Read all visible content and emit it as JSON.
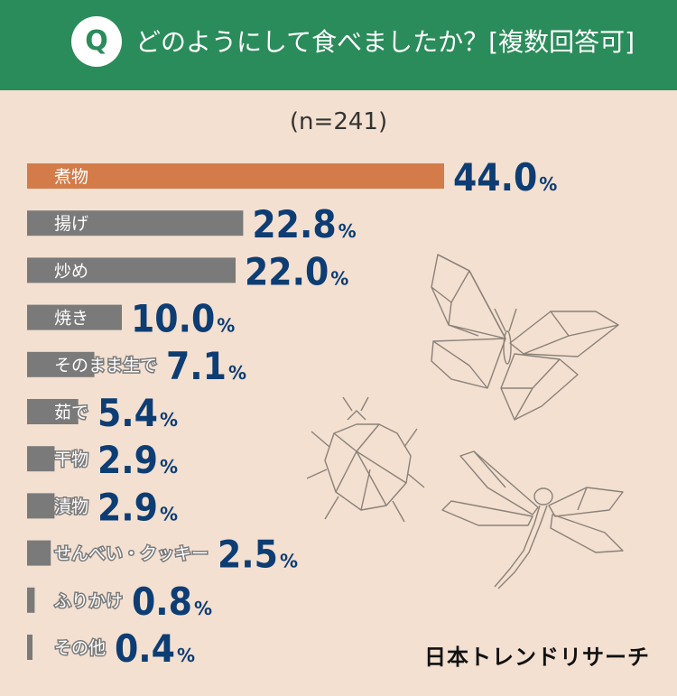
{
  "header": {
    "q_mark": "Q",
    "question": "どのようにして食べましたか？[複数回答可]"
  },
  "sample_size": "(n=241)",
  "brand": "日本トレンドリサーチ",
  "colors": {
    "header_bg": "#2a8c5a",
    "background": "#f3e0d1",
    "highlight_bar": "#d47c49",
    "bar": "#7a7a7a",
    "value_text": "#0d3d73"
  },
  "chart_data": {
    "type": "bar",
    "orientation": "horizontal",
    "title": "",
    "unit": "%",
    "categories": [
      "煮物",
      "揚げ",
      "炒め",
      "焼き",
      "そのまま生で",
      "茹で",
      "干物",
      "漬物",
      "せんべい・クッキー",
      "ふりかけ",
      "その他"
    ],
    "values": [
      44.0,
      22.8,
      22.0,
      10.0,
      7.1,
      5.4,
      2.9,
      2.9,
      2.5,
      0.8,
      0.4
    ],
    "value_labels": [
      "44.0",
      "22.8",
      "22.0",
      "10.0",
      "7.1",
      "5.4",
      "2.9",
      "2.9",
      "2.5",
      "0.8",
      "0.4"
    ],
    "highlight_index": 0
  }
}
